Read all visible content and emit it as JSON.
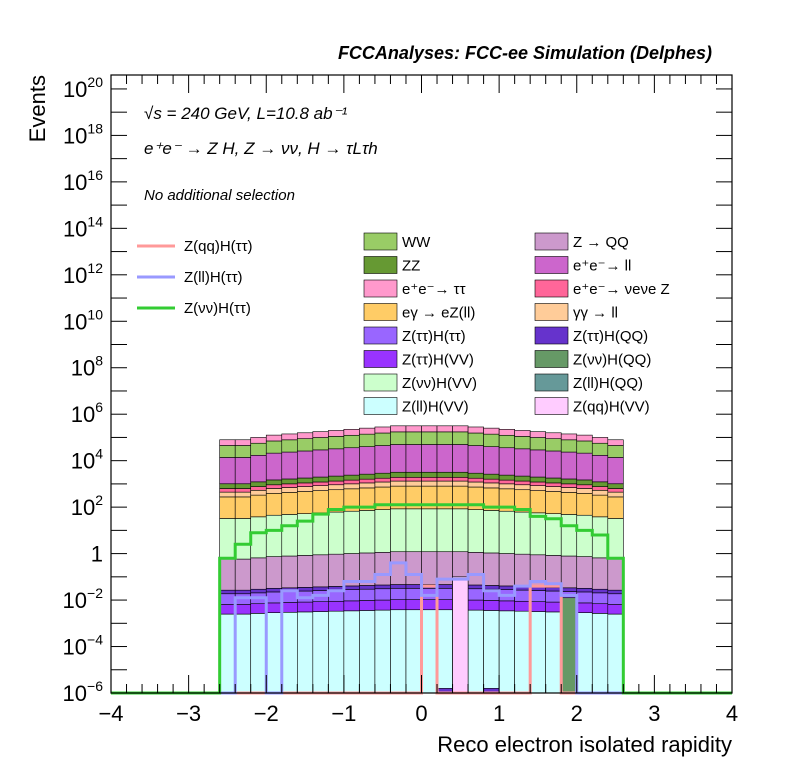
{
  "chart_data": {
    "type": "area",
    "title": "FCCAnalyses: FCC-ee Simulation (Delphes)",
    "xlabel": "Reco electron isolated rapidity",
    "ylabel": "Events",
    "xlim": [
      -4,
      4
    ],
    "ylim_log10": [
      -6,
      20.6
    ],
    "y_scale": "log",
    "x_ticks": [
      "−4",
      "−3",
      "−2",
      "−1",
      "0",
      "1",
      "2",
      "3",
      "4"
    ],
    "annotations": {
      "line1": "√s = 240 GeV, L=10.8 ab⁻¹",
      "line2": "e⁺e⁻ → Z H, Z → νν, H → τLτh",
      "line3": "No additional selection"
    },
    "bin_edges": [
      -2.6,
      -2.4,
      -2.2,
      -2.0,
      -1.8,
      -1.6,
      -1.4,
      -1.2,
      -1.0,
      -0.8,
      -0.6,
      -0.4,
      -0.2,
      0.0,
      0.2,
      0.4,
      0.6,
      0.8,
      1.0,
      1.2,
      1.4,
      1.6,
      1.8,
      2.0,
      2.2,
      2.4,
      2.6
    ],
    "stack_top_log10": [
      4.9,
      4.9,
      5.0,
      5.1,
      5.15,
      5.2,
      5.25,
      5.3,
      5.35,
      5.4,
      5.45,
      5.5,
      5.5,
      5.5,
      5.5,
      5.5,
      5.45,
      5.4,
      5.35,
      5.3,
      5.25,
      5.2,
      5.15,
      5.1,
      5.0,
      4.9
    ],
    "background_legend": [
      {
        "label": "WW",
        "color": "#99cc66"
      },
      {
        "label": "Z → QQ",
        "color": "#cc99cc"
      },
      {
        "label": "ZZ",
        "color": "#669933"
      },
      {
        "label": "e⁺e⁻→ ll",
        "color": "#cc66cc"
      },
      {
        "label": "e⁺e⁻→ ττ",
        "color": "#ff99cc"
      },
      {
        "label": "e⁺e⁻→ νeνe Z",
        "color": "#ff6699"
      },
      {
        "label": "eγ → eZ(ll)",
        "color": "#ffcc66"
      },
      {
        "label": "γγ → ll",
        "color": "#ffcc99"
      },
      {
        "label": "Z(ττ)H(ττ)",
        "color": "#9966ff"
      },
      {
        "label": "Z(ττ)H(QQ)",
        "color": "#6633cc"
      },
      {
        "label": "Z(ττ)H(VV)",
        "color": "#9933ff"
      },
      {
        "label": "Z(νν)H(QQ)",
        "color": "#669966"
      },
      {
        "label": "Z(νν)H(VV)",
        "color": "#ccffcc"
      },
      {
        "label": "Z(ll)H(QQ)",
        "color": "#669999"
      },
      {
        "label": "Z(ll)H(VV)",
        "color": "#ccffff"
      },
      {
        "label": "Z(qq)H(VV)",
        "color": "#ffccff"
      }
    ],
    "signal_series": [
      {
        "name": "Z(qq)H(ττ)",
        "color": "#ff9999",
        "values_log10": [
          -6.3,
          -6.3,
          -6.3,
          -6.3,
          -6.3,
          -6.3,
          -6.3,
          -6.3,
          -6.3,
          -6.3,
          -6.3,
          -6.3,
          -6.3,
          -1.4,
          -6.3,
          -6.3,
          -6.3,
          -6.3,
          -6.3,
          -6.3,
          -1.4,
          -1.4,
          -6.3,
          -6.3,
          -6.3,
          -6.3
        ]
      },
      {
        "name": "Z(ll)H(ττ)",
        "color": "#9999ff",
        "values_log10": [
          -6.3,
          -1.9,
          -1.9,
          -6.3,
          -1.6,
          -1.9,
          -1.8,
          -1.6,
          -1.2,
          -1.2,
          -0.9,
          -0.4,
          -0.9,
          -1.8,
          -1.1,
          -1.1,
          -0.9,
          -1.6,
          -1.8,
          -1.4,
          -1.2,
          -1.3,
          -1.8,
          -6.3,
          -6.3,
          -6.3
        ]
      },
      {
        "name": "Z(νν)H(ττ)",
        "color": "#33cc33",
        "values_log10": [
          -0.2,
          0.4,
          0.9,
          1.0,
          1.2,
          1.4,
          1.7,
          1.9,
          2.0,
          2.0,
          2.1,
          2.1,
          2.1,
          2.1,
          2.1,
          2.1,
          2.1,
          2.0,
          2.0,
          1.9,
          1.6,
          1.5,
          1.2,
          1.0,
          0.8,
          -0.2
        ]
      }
    ]
  }
}
